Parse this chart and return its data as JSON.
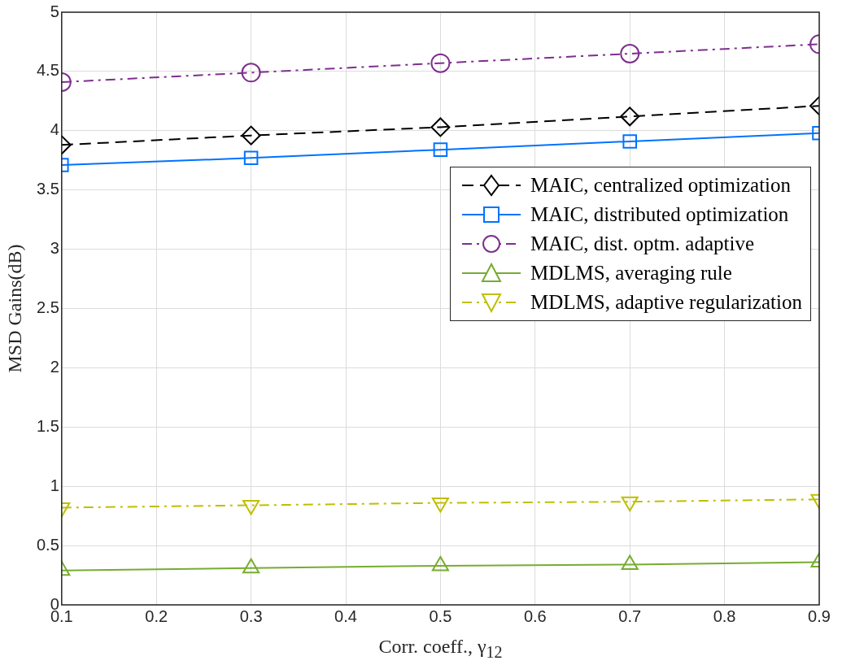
{
  "chart_data": {
    "type": "line",
    "xlabel": "Corr. coeff., γ$_{12}$",
    "ylabel": "MSD Gains(dB)",
    "x": [
      0.1,
      0.3,
      0.5,
      0.7,
      0.9
    ],
    "series": [
      {
        "name": "MAIC, centralized optimization",
        "color": "#000000",
        "marker": "diamond",
        "line_style": "dashed",
        "values": [
          3.88,
          3.96,
          4.03,
          4.12,
          4.21
        ]
      },
      {
        "name": "MAIC, distributed optimization",
        "color": "#0072ff",
        "marker": "square",
        "line_style": "solid",
        "values": [
          3.71,
          3.77,
          3.84,
          3.91,
          3.98
        ]
      },
      {
        "name": "MAIC, dist. optm. adaptive",
        "color": "#7e2f8e",
        "marker": "circle",
        "line_style": "dashdot",
        "values": [
          4.41,
          4.49,
          4.57,
          4.65,
          4.73
        ]
      },
      {
        "name": "MDLMS, averaging rule",
        "color": "#77ac30",
        "marker": "triangle",
        "line_style": "solid",
        "values": [
          0.29,
          0.31,
          0.33,
          0.34,
          0.36
        ]
      },
      {
        "name": "MDLMS, adaptive regularization",
        "color": "#bfbf00",
        "marker": "triangle_down",
        "line_style": "dashdot",
        "values": [
          0.82,
          0.84,
          0.86,
          0.87,
          0.89
        ]
      }
    ],
    "xlim": [
      0.1,
      0.9
    ],
    "xticks": [
      0.1,
      0.2,
      0.3,
      0.4,
      0.5,
      0.6,
      0.7,
      0.8,
      0.9
    ],
    "ylim": [
      0,
      5
    ],
    "yticks": [
      0,
      0.5,
      1,
      1.5,
      2,
      2.5,
      3,
      3.5,
      4,
      4.5,
      5
    ],
    "grid": true,
    "legend": "right"
  }
}
